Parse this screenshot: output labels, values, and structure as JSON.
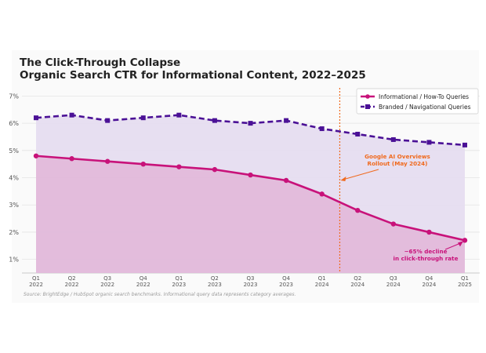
{
  "title": "The Click-Through Collapse",
  "subtitle": "Organic Search CTR for Informational Content, 2022–2025",
  "source": "Source: BrightEdge / HubSpot organic search benchmarks. Informational query data represents category averages.",
  "colors": {
    "informational": "#c8127a",
    "informational_fill": "#e2b8da",
    "branded": "#4b1196",
    "branded_fill": "#e6ddf0",
    "annotation_orange": "#f06a1e",
    "annotation_pink": "#c8127a",
    "grid": "#e4e4e4",
    "axis_text": "#555555"
  },
  "chart_data": {
    "type": "area",
    "categories": [
      [
        "Q1",
        "2022"
      ],
      [
        "Q2",
        "2022"
      ],
      [
        "Q3",
        "2022"
      ],
      [
        "Q4",
        "2022"
      ],
      [
        "Q1",
        "2023"
      ],
      [
        "Q2",
        "2023"
      ],
      [
        "Q3",
        "2023"
      ],
      [
        "Q4",
        "2023"
      ],
      [
        "Q1",
        "2024"
      ],
      [
        "Q2",
        "2024"
      ],
      [
        "Q3",
        "2024"
      ],
      [
        "Q4",
        "2024"
      ],
      [
        "Q1",
        "2025"
      ]
    ],
    "series": [
      {
        "name": "Informational / How-To Queries",
        "values": [
          4.8,
          4.7,
          4.6,
          4.5,
          4.4,
          4.3,
          4.1,
          3.9,
          3.4,
          2.8,
          2.3,
          2.0,
          1.7
        ],
        "line_style": "solid",
        "marker": "circle"
      },
      {
        "name": "Branded / Navigational Queries",
        "values": [
          6.2,
          6.3,
          6.1,
          6.2,
          6.3,
          6.1,
          6.0,
          6.1,
          5.8,
          5.6,
          5.4,
          5.3,
          5.2
        ],
        "line_style": "dashed",
        "marker": "square"
      }
    ],
    "y_ticks": [
      "1%",
      "2%",
      "3%",
      "4%",
      "5%",
      "6%",
      "7%"
    ],
    "ylim": [
      0.5,
      7.3
    ],
    "y_unit": "%",
    "grid": "horizontal",
    "legend_position": "top-right",
    "event_line": {
      "x_between": [
        8,
        9
      ],
      "fraction": 0.5,
      "label": [
        "Google AI Overviews",
        "Rollout (May 2024)"
      ]
    },
    "annotation": {
      "label": [
        "−65% decline",
        "in click-through rate"
      ],
      "target_index": 12
    }
  }
}
